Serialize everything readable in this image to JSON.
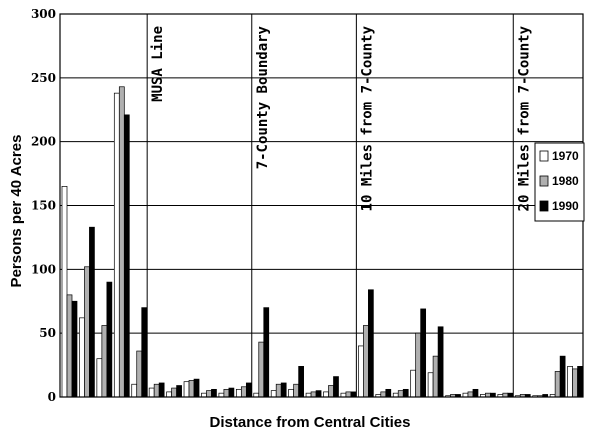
{
  "chart_data": {
    "type": "bar",
    "ylabel": "Persons per 40 Acres",
    "xlabel": "Distance from Central Cities",
    "ylim": [
      0,
      300
    ],
    "yticks": [
      0,
      50,
      100,
      150,
      200,
      250,
      300
    ],
    "grid": true,
    "legend_position": "right",
    "series": [
      {
        "name": "1970",
        "color": "#ffffff"
      },
      {
        "name": "1980",
        "color": "#b0b0b0"
      },
      {
        "name": "1990",
        "color": "#000000"
      }
    ],
    "groups": [
      [
        165,
        80,
        75
      ],
      [
        62,
        102,
        133
      ],
      [
        30,
        56,
        90
      ],
      [
        238,
        243,
        221
      ],
      [
        10,
        36,
        70
      ],
      [
        7,
        10,
        11
      ],
      [
        4,
        7,
        9
      ],
      [
        12,
        13,
        14
      ],
      [
        3,
        5,
        6
      ],
      [
        3,
        6,
        7
      ],
      [
        6,
        8,
        11
      ],
      [
        3,
        43,
        70
      ],
      [
        5,
        10,
        11
      ],
      [
        6,
        10,
        24
      ],
      [
        3,
        4,
        5
      ],
      [
        4,
        9,
        16
      ],
      [
        3,
        4,
        4
      ],
      [
        40,
        56,
        84
      ],
      [
        2,
        4,
        6
      ],
      [
        3,
        5,
        6
      ],
      [
        21,
        50,
        69
      ],
      [
        19,
        32,
        55
      ],
      [
        1,
        2,
        2
      ],
      [
        3,
        4,
        6
      ],
      [
        2,
        3,
        3
      ],
      [
        2,
        3,
        3
      ],
      [
        1,
        2,
        2
      ],
      [
        1,
        1,
        2
      ],
      [
        2,
        20,
        32
      ],
      [
        24,
        22,
        24
      ]
    ],
    "boundaries": [
      {
        "label": "MUSA Line",
        "after_group": 5
      },
      {
        "label": "7-County Boundary",
        "after_group": 11
      },
      {
        "label": "10 Miles from 7-County",
        "after_group": 17
      },
      {
        "label": "20 Miles from 7-County",
        "after_group": 26
      }
    ]
  }
}
